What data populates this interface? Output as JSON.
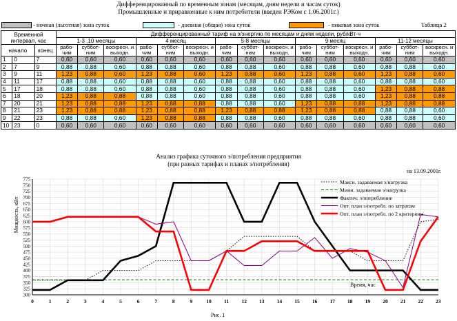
{
  "header": {
    "title1": "Дифференцированный по временным зонам (месяцам, дням недели и часам суток)",
    "title2": "Промышленные и приравненные к ним потребители (введен РЭКом с 1.06.2001г.)",
    "table_no": "Таблица 2"
  },
  "legend": {
    "night": "- ночная (льготная) зона суток",
    "day": "- дневная (общая) зона суток",
    "peak": "- пиковая зона суток",
    "colors": {
      "night": "#c0c0c0",
      "day": "#ccffff",
      "peak": "#ff9900"
    }
  },
  "table": {
    "h_interval": "Временной интервал, час",
    "h_tariff": "Дифференцированный тариф на э/энергию по месяцам и дням недели, руб/кВт-ч",
    "h_start": "начало",
    "h_end": "конец",
    "month_groups": [
      "1-3 ,10 месяцы",
      "4 месяц",
      "5-8 месяцы",
      "9 месяц",
      "11-12 месяцы"
    ],
    "day_types": [
      "рабо-чим",
      "суббот-ним",
      "воскресн. и выходн."
    ],
    "rows": [
      {
        "n": "1",
        "s": "0",
        "e": "7",
        "cells": [
          [
            "0,60",
            "n"
          ],
          [
            "0,60",
            "n"
          ],
          [
            "0,60",
            "n"
          ],
          [
            "0,60",
            "n"
          ],
          [
            "0,60",
            "n"
          ],
          [
            "0,60",
            "n"
          ],
          [
            "0,60",
            "n"
          ],
          [
            "0,60",
            "n"
          ],
          [
            "0,60",
            "n"
          ],
          [
            "0,60",
            "n"
          ],
          [
            "0,60",
            "n"
          ],
          [
            "0,60",
            "n"
          ],
          [
            "0,60",
            "n"
          ],
          [
            "0,60",
            "n"
          ],
          [
            "0,60",
            "n"
          ]
        ]
      },
      {
        "n": "2",
        "s": "7",
        "e": "9",
        "cells": [
          [
            "0,88",
            "d"
          ],
          [
            "0,88",
            "d"
          ],
          [
            "0,60",
            "d"
          ],
          [
            "0,88",
            "d"
          ],
          [
            "0,88",
            "d"
          ],
          [
            "0,60",
            "d"
          ],
          [
            "0,88",
            "d"
          ],
          [
            "0,88",
            "d"
          ],
          [
            "0,60",
            "d"
          ],
          [
            "0,88",
            "d"
          ],
          [
            "0,88",
            "d"
          ],
          [
            "0,60",
            "d"
          ],
          [
            "0,88",
            "d"
          ],
          [
            "0,88",
            "d"
          ],
          [
            "0,60",
            "d"
          ]
        ]
      },
      {
        "n": "3",
        "s": "9",
        "e": "11",
        "cells": [
          [
            "1,23",
            "p"
          ],
          [
            "0,88",
            "p"
          ],
          [
            "0,60",
            "p"
          ],
          [
            "1,23",
            "p"
          ],
          [
            "0,88",
            "p"
          ],
          [
            "0,60",
            "p"
          ],
          [
            "1,23",
            "p"
          ],
          [
            "0,88",
            "p"
          ],
          [
            "0,60",
            "p"
          ],
          [
            "1,23",
            "p"
          ],
          [
            "0,88",
            "p"
          ],
          [
            "0,60",
            "p"
          ],
          [
            "1,23",
            "p"
          ],
          [
            "0,88",
            "p"
          ],
          [
            "0,60",
            "p"
          ]
        ]
      },
      {
        "n": "4",
        "s": "11",
        "e": "17",
        "cells": [
          [
            "0,88",
            "d"
          ],
          [
            "0,88",
            "d"
          ],
          [
            "0,60",
            "d"
          ],
          [
            "0,88",
            "d"
          ],
          [
            "0,88",
            "d"
          ],
          [
            "0,60",
            "d"
          ],
          [
            "0,88",
            "d"
          ],
          [
            "0,88",
            "d"
          ],
          [
            "0,60",
            "d"
          ],
          [
            "0,88",
            "d"
          ],
          [
            "0,88",
            "d"
          ],
          [
            "0,60",
            "d"
          ],
          [
            "0,88",
            "d"
          ],
          [
            "0,88",
            "d"
          ],
          [
            "0,60",
            "d"
          ]
        ]
      },
      {
        "n": "5",
        "s": "17",
        "e": "18",
        "cells": [
          [
            "0,88",
            "d"
          ],
          [
            "0,88",
            "d"
          ],
          [
            "0,60",
            "d"
          ],
          [
            "0,88",
            "d"
          ],
          [
            "0,88",
            "d"
          ],
          [
            "0,60",
            "d"
          ],
          [
            "0,88",
            "d"
          ],
          [
            "0,88",
            "d"
          ],
          [
            "0,60",
            "d"
          ],
          [
            "0,88",
            "d"
          ],
          [
            "0,88",
            "d"
          ],
          [
            "0,60",
            "d"
          ],
          [
            "1,23",
            "p"
          ],
          [
            "0,88",
            "p"
          ],
          [
            "0,88",
            "p"
          ]
        ]
      },
      {
        "n": "6",
        "s": "18",
        "e": "20",
        "cells": [
          [
            "1,23",
            "p"
          ],
          [
            "0,88",
            "p"
          ],
          [
            "0,88",
            "p"
          ],
          [
            "0,88",
            "d"
          ],
          [
            "0,88",
            "d"
          ],
          [
            "0,60",
            "d"
          ],
          [
            "0,88",
            "d"
          ],
          [
            "0,88",
            "d"
          ],
          [
            "0,60",
            "d"
          ],
          [
            "0,88",
            "d"
          ],
          [
            "0,88",
            "d"
          ],
          [
            "0,60",
            "d"
          ],
          [
            "1,23",
            "p"
          ],
          [
            "0,88",
            "p"
          ],
          [
            "0,88",
            "p"
          ]
        ]
      },
      {
        "n": "7",
        "s": "20",
        "e": "21",
        "cells": [
          [
            "1,23",
            "p"
          ],
          [
            "0,88",
            "p"
          ],
          [
            "0,88",
            "p"
          ],
          [
            "1,23",
            "p"
          ],
          [
            "0,88",
            "p"
          ],
          [
            "0,88",
            "p"
          ],
          [
            "0,88",
            "d"
          ],
          [
            "0,88",
            "d"
          ],
          [
            "0,60",
            "d"
          ],
          [
            "1,23",
            "p"
          ],
          [
            "0,88",
            "p"
          ],
          [
            "0,88",
            "p"
          ],
          [
            "1,23",
            "p"
          ],
          [
            "0,88",
            "p"
          ],
          [
            "0,88",
            "p"
          ]
        ]
      },
      {
        "n": "8",
        "s": "21",
        "e": "23",
        "cells": [
          [
            "1,23",
            "p"
          ],
          [
            "0,88",
            "p"
          ],
          [
            "0,88",
            "p"
          ],
          [
            "1,23",
            "p"
          ],
          [
            "0,88",
            "p"
          ],
          [
            "0,88",
            "p"
          ],
          [
            "1,23",
            "p"
          ],
          [
            "0,88",
            "p"
          ],
          [
            "0,88",
            "p"
          ],
          [
            "1,23",
            "p"
          ],
          [
            "0,88",
            "p"
          ],
          [
            "0,88",
            "p"
          ],
          [
            "0,88",
            "d"
          ],
          [
            "0,88",
            "d"
          ],
          [
            "0,60",
            "d"
          ]
        ]
      },
      {
        "n": "9",
        "s": "22",
        "e": "23",
        "cells": [
          [
            "0,88",
            "d"
          ],
          [
            "0,88",
            "d"
          ],
          [
            "0,60",
            "d"
          ],
          [
            "1,23",
            "p"
          ],
          [
            "0,88",
            "p"
          ],
          [
            "0,88",
            "p"
          ],
          [
            "0,88",
            "d"
          ],
          [
            "0,88",
            "d"
          ],
          [
            "0,60",
            "d"
          ],
          [
            "0,88",
            "d"
          ],
          [
            "0,88",
            "d"
          ],
          [
            "0,60",
            "d"
          ],
          [
            "0,88",
            "d"
          ],
          [
            "0,88",
            "d"
          ],
          [
            "0,60",
            "d"
          ]
        ]
      },
      {
        "n": "10",
        "s": "23",
        "e": "0",
        "cells": [
          [
            "0,60",
            "n"
          ],
          [
            "0,60",
            "n"
          ],
          [
            "0,60",
            "n"
          ],
          [
            "0,60",
            "n"
          ],
          [
            "0,60",
            "n"
          ],
          [
            "0,60",
            "n"
          ],
          [
            "0,60",
            "n"
          ],
          [
            "0,60",
            "n"
          ],
          [
            "0,60",
            "n"
          ],
          [
            "0,60",
            "n"
          ],
          [
            "0,60",
            "n"
          ],
          [
            "0,60",
            "n"
          ],
          [
            "0,60",
            "n"
          ],
          [
            "0,60",
            "n"
          ],
          [
            "0,60",
            "n"
          ]
        ]
      }
    ]
  },
  "chart_title1": "Анализ графика суточного э/потребления предприятия",
  "chart_title2": "(при разных тарифах и планах э/потребления)",
  "chart_date": "на 13.09.2001г.",
  "figure_caption": "Рис. 1",
  "chart_data": {
    "type": "line",
    "title": "Анализ графика суточного э/потребления предприятия",
    "xlabel": "Время, час",
    "ylabel": "Мощность, кВт",
    "x": [
      "0",
      "1",
      "2",
      "3",
      "4",
      "5",
      "6",
      "7",
      "8",
      "9",
      "10",
      "11",
      "12",
      "13",
      "14",
      "15",
      "16",
      "17",
      "18",
      "19",
      "20",
      "21",
      "22",
      "23"
    ],
    "ylim": [
      300,
      775
    ],
    "yticks": [
      "300",
      "325",
      "350",
      "375",
      "400",
      "425",
      "450",
      "475",
      "500",
      "525",
      "550",
      "575",
      "600",
      "625",
      "650",
      "675",
      "700",
      "725",
      "750",
      "775"
    ],
    "series": [
      {
        "name": "Макси. задаваемая э/нагрузка",
        "color": "#000000",
        "style": "dotted",
        "width": 1,
        "values": [
          360,
          360,
          360,
          360,
          400,
          400,
          400,
          440,
          440,
          440,
          440,
          480,
          540,
          540,
          540,
          540,
          480,
          480,
          480,
          440,
          440,
          440,
          600,
          610
        ]
      },
      {
        "name": "Мини. задаваемая э/нагрузка",
        "color": "#008000",
        "style": "dashed",
        "width": 1,
        "values": [
          362,
          362,
          362,
          362,
          362,
          362,
          362,
          362,
          362,
          362,
          362,
          362,
          362,
          362,
          362,
          362,
          362,
          362,
          362,
          362,
          362,
          362,
          362,
          362
        ]
      },
      {
        "name": "Фактич. э/потребление",
        "color": "#000000",
        "style": "solid",
        "width": 2.6,
        "values": [
          320,
          320,
          360,
          360,
          360,
          440,
          460,
          500,
          760,
          760,
          760,
          760,
          600,
          600,
          760,
          760,
          600,
          500,
          400,
          400,
          400,
          400,
          320,
          320
        ]
      },
      {
        "name": "Опт. план э/потребл. по затратам",
        "color": "#800080",
        "style": "solid",
        "width": 1,
        "values": [
          600,
          600,
          620,
          620,
          620,
          620,
          620,
          590,
          600,
          440,
          440,
          480,
          420,
          420,
          480,
          480,
          535,
          450,
          490,
          475,
          440,
          330,
          630,
          620
        ]
      },
      {
        "name": "Опт. план э/потребл. по 2 критериям",
        "color": "#ff0000",
        "style": "solid",
        "width": 2.6,
        "values": [
          600,
          600,
          620,
          620,
          620,
          620,
          620,
          560,
          560,
          320,
          320,
          480,
          480,
          520,
          520,
          520,
          480,
          480,
          480,
          480,
          320,
          320,
          520,
          620
        ]
      }
    ],
    "legend_position": "top-right"
  }
}
